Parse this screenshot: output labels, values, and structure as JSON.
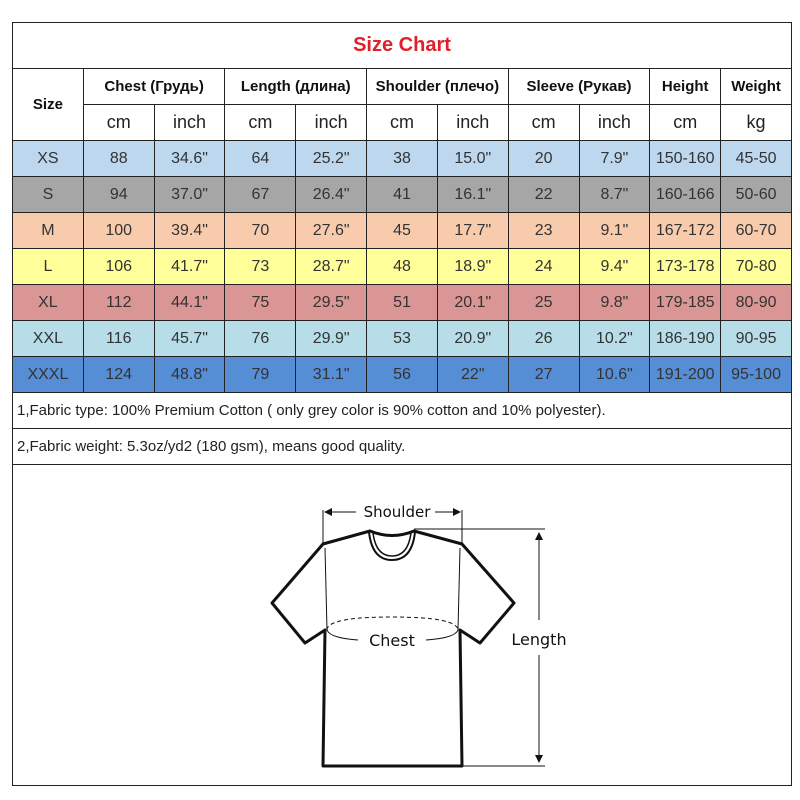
{
  "title": "Size Chart",
  "headers": {
    "size": "Size",
    "groups": [
      "Chest  (Грудь)",
      "Length (длина)",
      "Shoulder (плечо)",
      "Sleeve (Рукав)",
      "Height",
      "Weight"
    ],
    "units": [
      "cm",
      "inch",
      "cm",
      "inch",
      "cm",
      "inch",
      "cm",
      "inch",
      "cm",
      "kg"
    ]
  },
  "rows": [
    {
      "size": "XS",
      "color": "#bdd7ee",
      "values": [
        "88",
        "34.6\"",
        "64",
        "25.2\"",
        "38",
        "15.0\"",
        "20",
        "7.9\"",
        "150-160",
        "45-50"
      ]
    },
    {
      "size": "S",
      "color": "#a6a6a6",
      "values": [
        "94",
        "37.0\"",
        "67",
        "26.4\"",
        "41",
        "16.1\"",
        "22",
        "8.7\"",
        "160-166",
        "50-60"
      ]
    },
    {
      "size": "M",
      "color": "#f8cbad",
      "values": [
        "100",
        "39.4\"",
        "70",
        "27.6\"",
        "45",
        "17.7\"",
        "23",
        "9.1\"",
        "167-172",
        "60-70"
      ]
    },
    {
      "size": "L",
      "color": "#ffff99",
      "values": [
        "106",
        "41.7\"",
        "73",
        "28.7\"",
        "48",
        "18.9\"",
        "24",
        "9.4\"",
        "173-178",
        "70-80"
      ]
    },
    {
      "size": "XL",
      "color": "#d99694",
      "values": [
        "112",
        "44.1\"",
        "75",
        "29.5\"",
        "51",
        "20.1\"",
        "25",
        "9.8\"",
        "179-185",
        "80-90"
      ]
    },
    {
      "size": "XXL",
      "color": "#b7dee8",
      "values": [
        "116",
        "45.7\"",
        "76",
        "29.9\"",
        "53",
        "20.9\"",
        "26",
        "10.2\"",
        "186-190",
        "90-95"
      ]
    },
    {
      "size": "XXXL",
      "color": "#558ed5",
      "values": [
        "124",
        "48.8\"",
        "79",
        "31.1\"",
        "56",
        "22\"",
        "27",
        "10.6\"",
        "191-200",
        "95-100"
      ]
    }
  ],
  "notes": [
    "1,Fabric type: 100% Premium Cotton ( only grey color is 90% cotton and 10% polyester).",
    "2,Fabric weight: 5.3oz/yd2 (180 gsm), means good quality."
  ],
  "diagram": {
    "shoulder": "Shoulder",
    "chest": "Chest",
    "length": "Length"
  }
}
